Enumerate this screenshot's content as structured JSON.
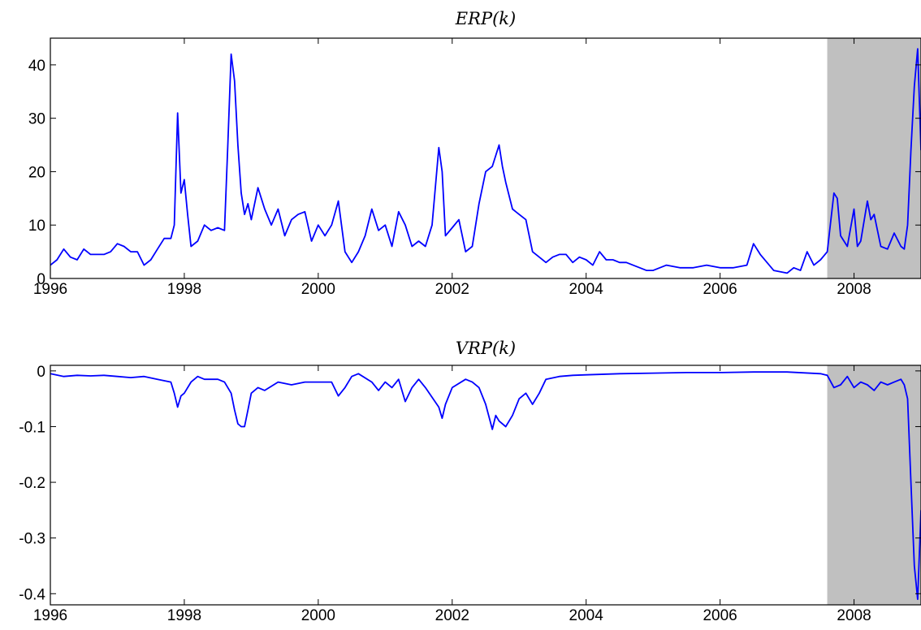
{
  "chart_data": [
    {
      "type": "line",
      "title": "ERP(k)",
      "xlabel": "",
      "ylabel": "",
      "xlim": [
        1996,
        2009
      ],
      "ylim": [
        0,
        45
      ],
      "x_ticks": [
        1996,
        1998,
        2000,
        2002,
        2004,
        2006,
        2008
      ],
      "y_ticks": [
        0,
        10,
        20,
        30,
        40
      ],
      "grid": false,
      "shaded_regions": [
        {
          "x_start": 2007.6,
          "x_end": 2009
        }
      ],
      "series": [
        {
          "color": "#0000ff",
          "x": [
            1996.0,
            1996.1,
            1996.2,
            1996.3,
            1996.4,
            1996.5,
            1996.6,
            1996.7,
            1996.8,
            1996.9,
            1997.0,
            1997.1,
            1997.2,
            1997.3,
            1997.4,
            1997.5,
            1997.6,
            1997.7,
            1997.8,
            1997.85,
            1997.9,
            1997.95,
            1998.0,
            1998.05,
            1998.1,
            1998.2,
            1998.3,
            1998.4,
            1998.5,
            1998.6,
            1998.65,
            1998.7,
            1998.75,
            1998.8,
            1998.85,
            1998.9,
            1998.95,
            1999.0,
            1999.1,
            1999.2,
            1999.3,
            1999.4,
            1999.5,
            1999.6,
            1999.7,
            1999.8,
            1999.9,
            2000.0,
            2000.1,
            2000.2,
            2000.3,
            2000.4,
            2000.5,
            2000.6,
            2000.7,
            2000.8,
            2000.9,
            2001.0,
            2001.1,
            2001.2,
            2001.3,
            2001.4,
            2001.5,
            2001.6,
            2001.7,
            2001.8,
            2001.85,
            2001.9,
            2002.0,
            2002.1,
            2002.2,
            2002.3,
            2002.4,
            2002.5,
            2002.6,
            2002.7,
            2002.75,
            2002.8,
            2002.9,
            2003.0,
            2003.1,
            2003.2,
            2003.3,
            2003.4,
            2003.5,
            2003.6,
            2003.7,
            2003.8,
            2003.9,
            2004.0,
            2004.1,
            2004.2,
            2004.3,
            2004.4,
            2004.5,
            2004.6,
            2004.7,
            2004.8,
            2004.9,
            2005.0,
            2005.2,
            2005.4,
            2005.6,
            2005.8,
            2006.0,
            2006.2,
            2006.4,
            2006.5,
            2006.6,
            2006.8,
            2007.0,
            2007.1,
            2007.2,
            2007.3,
            2007.4,
            2007.5,
            2007.6,
            2007.7,
            2007.75,
            2007.8,
            2007.9,
            2008.0,
            2008.05,
            2008.1,
            2008.2,
            2008.25,
            2008.3,
            2008.4,
            2008.5,
            2008.6,
            2008.7,
            2008.75,
            2008.8,
            2008.85,
            2008.9,
            2008.95,
            2009.0
          ],
          "y": [
            2.5,
            3.5,
            5.5,
            4.0,
            3.5,
            5.5,
            4.5,
            4.5,
            4.5,
            5.0,
            6.5,
            6.0,
            5.0,
            5.0,
            2.5,
            3.5,
            5.5,
            7.5,
            7.5,
            10.0,
            31.0,
            16.0,
            18.5,
            12.0,
            6.0,
            7.0,
            10.0,
            9.0,
            9.5,
            9.0,
            25.0,
            42.0,
            37.0,
            25.0,
            16.0,
            12.0,
            14.0,
            11.0,
            17.0,
            13.0,
            10.0,
            13.0,
            8.0,
            11.0,
            12.0,
            12.5,
            7.0,
            10.0,
            8.0,
            10.0,
            14.5,
            5.0,
            3.0,
            5.0,
            8.0,
            13.0,
            9.0,
            10.0,
            6.0,
            12.5,
            10.0,
            6.0,
            7.0,
            6.0,
            10.0,
            24.5,
            20.0,
            8.0,
            9.5,
            11.0,
            5.0,
            6.0,
            14.0,
            20.0,
            21.0,
            25.0,
            21.0,
            18.0,
            13.0,
            12.0,
            11.0,
            5.0,
            4.0,
            3.0,
            4.0,
            4.5,
            4.5,
            3.0,
            4.0,
            3.5,
            2.5,
            5.0,
            3.5,
            3.5,
            3.0,
            3.0,
            2.5,
            2.0,
            1.5,
            1.5,
            2.5,
            2.0,
            2.0,
            2.5,
            2.0,
            2.0,
            2.5,
            6.5,
            4.5,
            1.5,
            1.0,
            2.0,
            1.5,
            5.0,
            2.5,
            3.5,
            5.0,
            16.0,
            15.0,
            8.0,
            6.0,
            13.0,
            6.0,
            7.0,
            14.5,
            11.0,
            12.0,
            6.0,
            5.5,
            8.5,
            6.0,
            5.5,
            10.0,
            24.0,
            36.0,
            43.0,
            24.0
          ]
        }
      ]
    },
    {
      "type": "line",
      "title": "VRP(k)",
      "xlabel": "",
      "ylabel": "",
      "xlim": [
        1996,
        2009
      ],
      "ylim": [
        -0.42,
        0.01
      ],
      "x_ticks": [
        1996,
        1998,
        2000,
        2002,
        2004,
        2006,
        2008
      ],
      "y_ticks": [
        0,
        -0.1,
        -0.2,
        -0.3,
        -0.4
      ],
      "y_tick_labels": [
        "0",
        "-0.1",
        "-0.2",
        "-0.3",
        "-0.4"
      ],
      "grid": false,
      "shaded_regions": [
        {
          "x_start": 2007.6,
          "x_end": 2009
        }
      ],
      "series": [
        {
          "color": "#0000ff",
          "x": [
            1996.0,
            1996.2,
            1996.4,
            1996.6,
            1996.8,
            1997.0,
            1997.2,
            1997.4,
            1997.6,
            1997.8,
            1997.85,
            1997.9,
            1997.95,
            1998.0,
            1998.1,
            1998.2,
            1998.3,
            1998.4,
            1998.5,
            1998.6,
            1998.7,
            1998.75,
            1998.8,
            1998.85,
            1998.9,
            1998.95,
            1999.0,
            1999.1,
            1999.2,
            1999.4,
            1999.6,
            1999.8,
            2000.0,
            2000.2,
            2000.3,
            2000.4,
            2000.5,
            2000.6,
            2000.8,
            2000.9,
            2001.0,
            2001.1,
            2001.2,
            2001.3,
            2001.4,
            2001.5,
            2001.6,
            2001.8,
            2001.85,
            2001.9,
            2002.0,
            2002.2,
            2002.3,
            2002.4,
            2002.5,
            2002.6,
            2002.65,
            2002.7,
            2002.8,
            2002.9,
            2003.0,
            2003.1,
            2003.2,
            2003.3,
            2003.4,
            2003.6,
            2003.8,
            2004.0,
            2004.5,
            2005.0,
            2005.5,
            2006.0,
            2006.5,
            2007.0,
            2007.5,
            2007.6,
            2007.7,
            2007.8,
            2007.9,
            2008.0,
            2008.1,
            2008.2,
            2008.3,
            2008.4,
            2008.5,
            2008.6,
            2008.7,
            2008.75,
            2008.8,
            2008.85,
            2008.9,
            2008.95,
            2009.0
          ],
          "y": [
            -0.005,
            -0.01,
            -0.008,
            -0.009,
            -0.008,
            -0.01,
            -0.012,
            -0.01,
            -0.015,
            -0.02,
            -0.04,
            -0.065,
            -0.045,
            -0.04,
            -0.02,
            -0.01,
            -0.015,
            -0.015,
            -0.015,
            -0.02,
            -0.04,
            -0.07,
            -0.095,
            -0.1,
            -0.1,
            -0.07,
            -0.04,
            -0.03,
            -0.035,
            -0.02,
            -0.025,
            -0.02,
            -0.02,
            -0.02,
            -0.045,
            -0.03,
            -0.01,
            -0.005,
            -0.02,
            -0.035,
            -0.02,
            -0.03,
            -0.015,
            -0.055,
            -0.03,
            -0.015,
            -0.03,
            -0.065,
            -0.085,
            -0.06,
            -0.03,
            -0.015,
            -0.02,
            -0.03,
            -0.06,
            -0.105,
            -0.08,
            -0.09,
            -0.1,
            -0.08,
            -0.05,
            -0.04,
            -0.06,
            -0.04,
            -0.015,
            -0.01,
            -0.008,
            -0.007,
            -0.005,
            -0.004,
            -0.003,
            -0.003,
            -0.002,
            -0.002,
            -0.005,
            -0.008,
            -0.03,
            -0.025,
            -0.01,
            -0.03,
            -0.02,
            -0.025,
            -0.035,
            -0.02,
            -0.025,
            -0.02,
            -0.015,
            -0.025,
            -0.05,
            -0.2,
            -0.35,
            -0.41,
            -0.25
          ]
        }
      ]
    }
  ]
}
